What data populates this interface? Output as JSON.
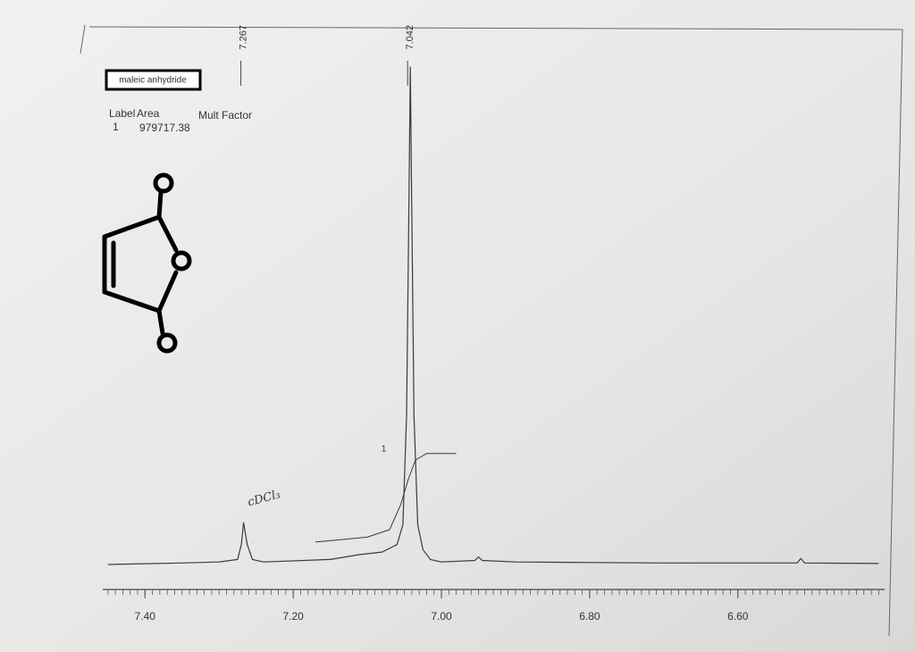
{
  "chart_data": {
    "type": "line",
    "compound": "maleic anhydride",
    "table_headers": [
      "Label",
      "Area",
      "Mult Factor"
    ],
    "table_rows": [
      [
        "1",
        "979717.38"
      ]
    ],
    "solvent_note": "cDCl₃",
    "integral_label": "1",
    "peak_labels": [
      7.267,
      7.042
    ],
    "x": [
      7.45,
      7.35,
      7.3,
      7.275,
      7.27,
      7.267,
      7.262,
      7.255,
      7.24,
      7.15,
      7.11,
      7.08,
      7.06,
      7.052,
      7.047,
      7.044,
      7.042,
      7.04,
      7.037,
      7.032,
      7.025,
      7.015,
      7.0,
      6.955,
      6.95,
      6.945,
      6.9,
      6.8,
      6.7,
      6.52,
      6.515,
      6.51,
      6.41
    ],
    "series": [
      {
        "color": "#3a3a3a",
        "values": [
          0,
          0.3,
          0.5,
          1,
          4,
          8.4,
          4,
          1,
          0.5,
          1,
          2,
          2.5,
          4,
          8,
          30,
          70,
          100,
          70,
          30,
          8,
          3,
          1,
          0.5,
          0.8,
          1.5,
          0.8,
          0.5,
          0.4,
          0.3,
          0.3,
          1.2,
          0.3,
          0.2
        ]
      }
    ],
    "integral": {
      "color": "#3a3a3a",
      "x": [
        7.17,
        7.1,
        7.07,
        7.055,
        7.045,
        7.035,
        7.02,
        6.98
      ],
      "values": [
        4.5,
        5.5,
        7,
        12,
        17,
        21,
        22.3,
        22.3
      ]
    },
    "xlim": [
      7.457,
      6.402
    ],
    "ylim": [
      0,
      100
    ],
    "xticks": [
      {
        "value": 7.4,
        "label": "7.40"
      },
      {
        "value": 7.2,
        "label": "7.20"
      },
      {
        "value": 7.0,
        "label": "7.00"
      },
      {
        "value": 6.8,
        "label": "6.80"
      },
      {
        "value": 6.6,
        "label": "6.60"
      }
    ],
    "minor_tick_step": 0.01
  }
}
